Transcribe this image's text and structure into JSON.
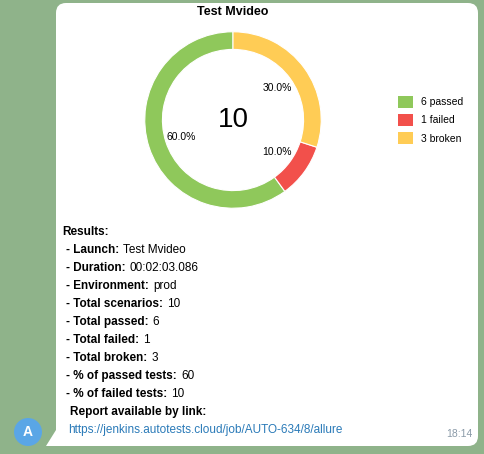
{
  "chart_data": {
    "type": "pie",
    "title": "Test Mvideo",
    "categories": [
      "6 passed",
      "1 failed",
      "3 broken"
    ],
    "values": [
      60,
      10,
      30
    ],
    "value_labels": [
      "60.0%",
      "10.0%",
      "30.0%"
    ],
    "colors": [
      "#8fc85b",
      "#f2504b",
      "#ffcc55"
    ],
    "data_labels": true,
    "legend": "right",
    "total": 10
  },
  "message": {
    "heading": "Results:",
    "items": [
      {
        "label": "- Launch:",
        "value": "Test Mvideo"
      },
      {
        "label": "- Duration:",
        "value": "00:02:03.086"
      },
      {
        "label": "- Environment:",
        "value": "prod"
      },
      {
        "label": "- Total scenarios:",
        "value": 10
      },
      {
        "label": "- Total passed:",
        "value": 6
      },
      {
        "label": "- Total failed:",
        "value": 1
      },
      {
        "label": "- Total broken:",
        "value": 3
      },
      {
        "label": "- % of passed tests:",
        "value": 60
      },
      {
        "label": "- % of failed tests:",
        "value": 10
      }
    ],
    "link_text": "Report available by link:",
    "link": "https://jenkins.autotests.cloud/job/AUTO-634/8/allure",
    "time": "18:14",
    "avatar": "A"
  }
}
